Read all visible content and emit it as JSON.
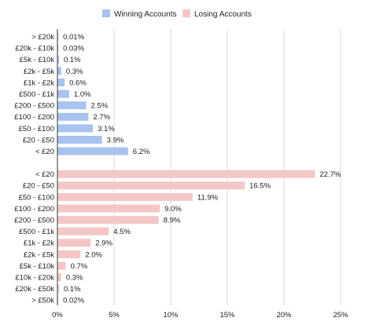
{
  "chart_data": {
    "type": "bar",
    "orientation": "horizontal",
    "legend_position": "top",
    "grid": true,
    "xlim": [
      0,
      25
    ],
    "x_ticks": [
      "0%",
      "5%",
      "10%",
      "15%",
      "20%",
      "25%"
    ],
    "x_tick_values": [
      0,
      5,
      10,
      15,
      20,
      25
    ],
    "series": [
      {
        "name": "Winning Accounts",
        "color": "#a7c3ee",
        "categories": [
          "> £20k",
          "£20k - £10k",
          "£5k - £10k",
          "£2k - £5k",
          "£1k - £2k",
          "£500 - £1k",
          "£200 - £500",
          "£100 - £200",
          "£50 - £100",
          "£20 - £50",
          "< £20"
        ],
        "values": [
          0.01,
          0.03,
          0.1,
          0.3,
          0.6,
          1.0,
          2.5,
          2.7,
          3.1,
          3.9,
          6.2
        ],
        "labels": [
          "0.01%",
          "0.03%",
          "0.1%",
          "0.3%",
          "0.6%",
          "1.0%",
          "2.5%",
          "2.7%",
          "3.1%",
          "3.9%",
          "6.2%"
        ]
      },
      {
        "name": "Losing Accounts",
        "color": "#f4c7c7",
        "categories": [
          "< £20",
          "£20 - £50",
          "£50 - £100",
          "£100 - £200",
          "£200 - £500",
          "£500 - £1k",
          "£1k - £2k",
          "£2k - £5k",
          "£5k - £10k",
          "£10k - £20k",
          "£20k - £50k",
          "> £50k"
        ],
        "values": [
          22.7,
          16.5,
          11.9,
          9.0,
          8.9,
          4.5,
          2.9,
          2.0,
          0.7,
          0.3,
          0.1,
          0.02
        ],
        "labels": [
          "22.7%",
          "16.5%",
          "11.9%",
          "9.0%",
          "8.9%",
          "4.5%",
          "2.9%",
          "2.0%",
          "0.7%",
          "0.3%",
          "0.1%",
          "0.02%"
        ]
      }
    ],
    "colors": {
      "grid": "#d9d9d9",
      "axis": "#333333",
      "text": "#222222"
    }
  }
}
